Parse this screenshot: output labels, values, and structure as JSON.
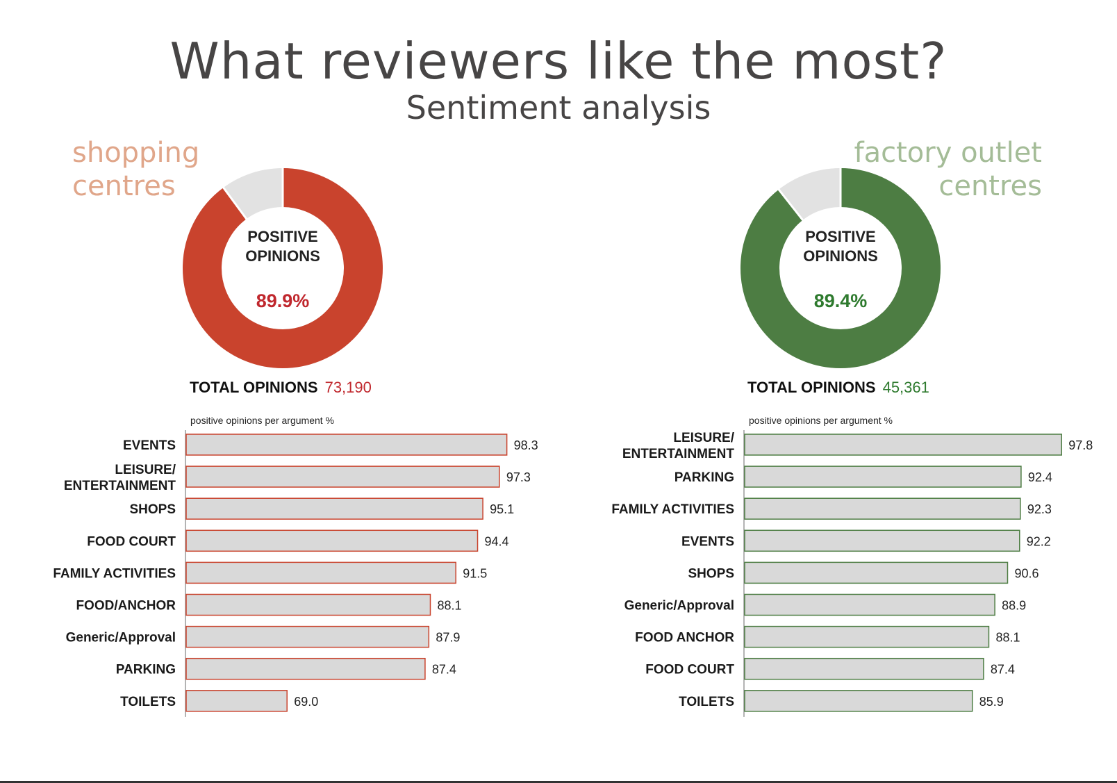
{
  "title": "What reviewers like the most?",
  "subtitle": "Sentiment analysis",
  "colors": {
    "left_accent": "#c9432d",
    "left_label": "#e0a68a",
    "left_text": "#c0272d",
    "right_accent": "#4d7d43",
    "right_label": "#a4bc97",
    "right_text": "#2e7a2e",
    "gray_ring": "#e2e2e2",
    "bar_fill": "#d9d9d9"
  },
  "panels": {
    "left": {
      "category": "shopping\ncentres",
      "center_label": "POSITIVE\nOPINIONS",
      "positive_pct": "89.9%",
      "total_label": "TOTAL OPINIONS",
      "total_value": "73,190",
      "axis_caption": "positive opinions per argument %"
    },
    "right": {
      "category": "factory outlet\ncentres",
      "center_label": "POSITIVE\nOPINIONS",
      "positive_pct": "89.4%",
      "total_label": "TOTAL OPINIONS",
      "total_value": "45,361",
      "axis_caption": "positive opinions per argument %"
    }
  },
  "chart_data": [
    {
      "type": "pie",
      "title": "POSITIVE OPINIONS",
      "values": [
        89.9,
        10.1
      ],
      "categories": [
        "positive",
        "other"
      ]
    },
    {
      "type": "bar",
      "title": "positive opinions per argument %",
      "categories": [
        "EVENTS",
        "LEISURE/ ENTERTAINMENT",
        "SHOPS",
        "FOOD COURT",
        "FAMILY ACTIVITIES",
        "FOOD/ANCHOR",
        "Generic/Approval",
        "PARKING",
        "TOILETS"
      ],
      "labels": [
        "98.3",
        "97.3",
        "95.1",
        "94.4",
        "91.5",
        "88.1",
        "87.9",
        "87.4",
        "69.0"
      ],
      "values": [
        98.3,
        97.3,
        95.1,
        94.4,
        91.5,
        88.1,
        87.9,
        87.4,
        69.0
      ],
      "highlight": "Generic/Approval"
    },
    {
      "type": "pie",
      "title": "POSITIVE OPINIONS",
      "values": [
        89.4,
        10.6
      ],
      "categories": [
        "positive",
        "other"
      ]
    },
    {
      "type": "bar",
      "title": "positive opinions per argument %",
      "categories": [
        "LEISURE/ ENTERTAINMENT",
        "PARKING",
        "FAMILY ACTIVITIES",
        "EVENTS",
        "SHOPS",
        "Generic/Approval",
        "FOOD ANCHOR",
        "FOOD COURT",
        "TOILETS"
      ],
      "labels": [
        "97.8",
        "92.4",
        "92.3",
        "92.2",
        "90.6",
        "88.9",
        "88.1",
        "87.4",
        "85.9"
      ],
      "values": [
        97.8,
        92.4,
        92.3,
        92.2,
        90.6,
        88.9,
        88.1,
        87.4,
        85.9
      ],
      "highlight": "Generic/Approval"
    }
  ]
}
